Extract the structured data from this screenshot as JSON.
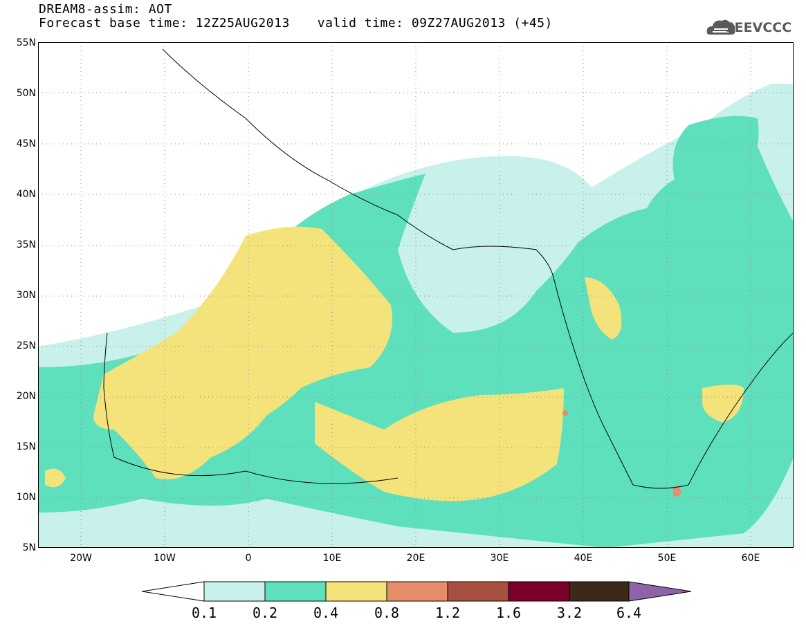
{
  "header": {
    "line1": "DREAM8-assim: AOT",
    "base_time_label": "Forecast base time: 12Z25AUG2013",
    "valid_time_label": "valid time: 09Z27AUG2013 (+45)"
  },
  "logo": {
    "text": "SEEVCCC"
  },
  "map": {
    "lat_labels": [
      "55N",
      "50N",
      "45N",
      "40N",
      "35N",
      "30N",
      "25N",
      "20N",
      "15N",
      "10N",
      "5N"
    ],
    "lon_labels": [
      "20W",
      "10W",
      "0",
      "10E",
      "20E",
      "30E",
      "40E",
      "50E",
      "60E"
    ]
  },
  "colorbar": {
    "levels": [
      "0.1",
      "0.2",
      "0.4",
      "0.8",
      "1.2",
      "1.6",
      "3.2",
      "6.4"
    ],
    "colors": [
      "#c7f1ea",
      "#5fe0bd",
      "#f4e37a",
      "#e48f6a",
      "#a85040",
      "#7a0028",
      "#3b2a18",
      "#8e63a8"
    ],
    "under_color": "#ffffff"
  }
}
